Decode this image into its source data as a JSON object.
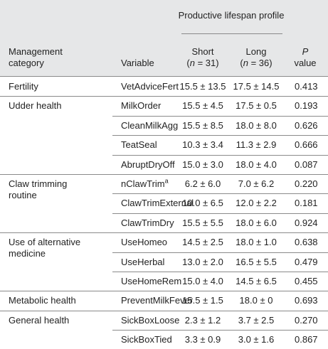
{
  "header": {
    "span_title": "Productive lifespan profile",
    "category": "Management category",
    "variable": "Variable",
    "short": {
      "label": "Short",
      "n": [
        "(",
        "n",
        " = 31)"
      ]
    },
    "long": {
      "label": "Long",
      "n": [
        "(",
        "n",
        " = 36)"
      ]
    },
    "p_value": [
      "P",
      "value"
    ]
  },
  "groups": [
    {
      "category": "Fertility",
      "rows": [
        [
          "VetAdviceFert",
          "15.5 ± 13.5",
          "17.5 ± 14.5",
          "0.413"
        ]
      ]
    },
    {
      "category": "Udder health",
      "rows": [
        [
          "MilkOrder",
          "15.5 ± 4.5",
          "17.5 ± 0.5",
          "0.193"
        ],
        [
          "CleanMilkAgg",
          "15.5 ± 8.5",
          "18.0 ± 8.0",
          "0.626"
        ],
        [
          "TeatSeal",
          "10.3 ± 3.4",
          "11.3 ± 2.9",
          "0.666"
        ],
        [
          "AbruptDryOff",
          "15.0 ± 3.0",
          "18.0 ± 4.0",
          "0.087"
        ]
      ]
    },
    {
      "category": "Claw trimming routine",
      "rows": [
        [
          [
            "nClawTrim",
            "a"
          ],
          "6.2 ± 6.0",
          "7.0 ± 6.2",
          "0.220"
        ],
        [
          "ClawTrimExternal",
          "10.0 ± 6.5",
          "12.0 ± 2.2",
          "0.181"
        ],
        [
          "ClawTrimDry",
          "15.5 ± 5.5",
          "18.0 ± 6.0",
          "0.924"
        ]
      ]
    },
    {
      "category": "Use of alternative medicine",
      "rows": [
        [
          "UseHomeo",
          "14.5 ± 2.5",
          "18.0 ± 1.0",
          "0.638"
        ],
        [
          "UseHerbal",
          "13.0 ± 2.0",
          "16.5 ± 5.5",
          "0.479"
        ],
        [
          "UseHomeRem",
          "15.0 ± 4.0",
          "14.5 ± 6.5",
          "0.455"
        ]
      ]
    },
    {
      "category": "Metabolic health",
      "rows": [
        [
          "PreventMilkFever",
          "15.5 ± 1.5",
          "18.0 ± 0",
          "0.693"
        ]
      ]
    },
    {
      "category": "General health",
      "rows": [
        [
          "SickBoxLoose",
          "2.3 ± 1.2",
          "3.7 ± 2.5",
          "0.270"
        ],
        [
          "SickBoxTied",
          "3.3 ± 0.9",
          "3.0 ± 1.6",
          "0.867"
        ]
      ]
    }
  ]
}
